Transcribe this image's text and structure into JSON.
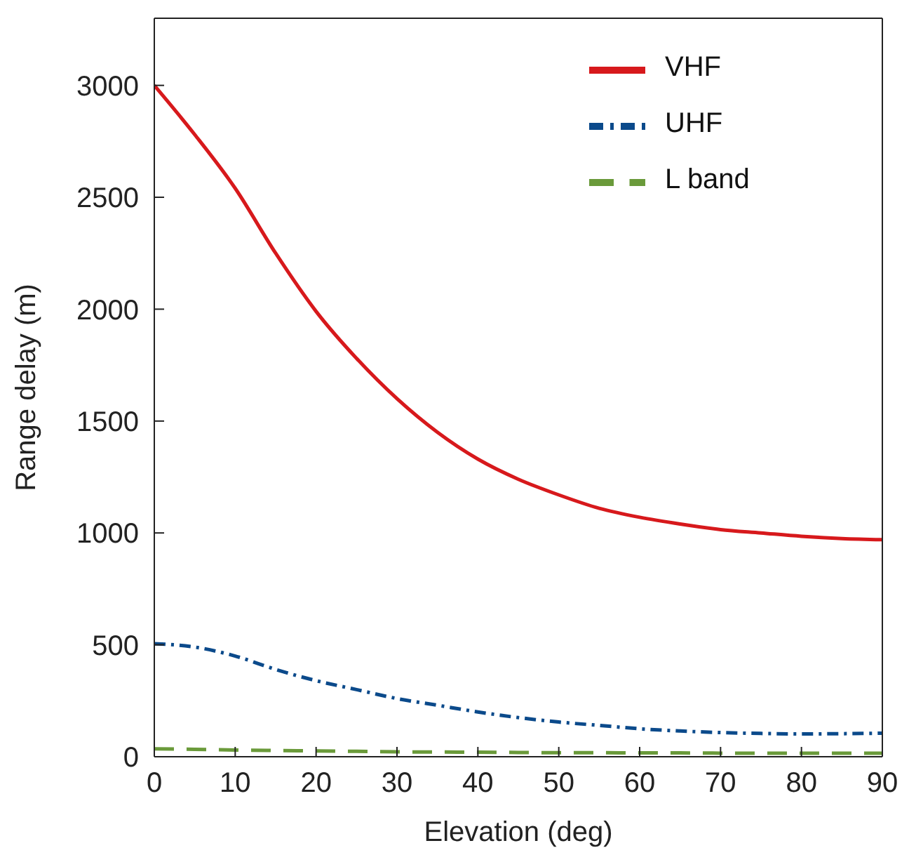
{
  "chart_data": {
    "type": "line",
    "xlabel": "Elevation (deg)",
    "ylabel": "Range delay (m)",
    "xlim": [
      0,
      90
    ],
    "xticks": [
      0,
      10,
      20,
      30,
      40,
      50,
      60,
      70,
      80,
      90
    ],
    "ylim": [
      0,
      3300
    ],
    "yticks": [
      0,
      500,
      1000,
      1500,
      2000,
      2500,
      3000
    ],
    "grid": false,
    "legend": "top right",
    "marker": "none",
    "x": [
      0,
      5,
      10,
      15,
      20,
      25,
      30,
      35,
      40,
      45,
      50,
      55,
      60,
      65,
      70,
      75,
      80,
      85,
      90
    ],
    "series": [
      {
        "name": "VHF",
        "color": "#d7191c",
        "line_style": "solid",
        "values": [
          3000,
          2780,
          2540,
          2250,
          1990,
          1780,
          1600,
          1450,
          1330,
          1240,
          1170,
          1110,
          1070,
          1040,
          1015,
          1000,
          985,
          975,
          970
        ]
      },
      {
        "name": "UHF",
        "color": "#0b4a8b",
        "line_style": "dashdot",
        "values": [
          505,
          490,
          450,
          390,
          340,
          300,
          260,
          230,
          200,
          175,
          155,
          140,
          125,
          115,
          108,
          104,
          102,
          103,
          105
        ]
      },
      {
        "name": "L band",
        "color": "#6a9a3a",
        "line_style": "dashed",
        "values": [
          35,
          33,
          30,
          28,
          26,
          24,
          22,
          21,
          20,
          19,
          18,
          18,
          17,
          17,
          16,
          16,
          16,
          16,
          16
        ]
      }
    ]
  }
}
